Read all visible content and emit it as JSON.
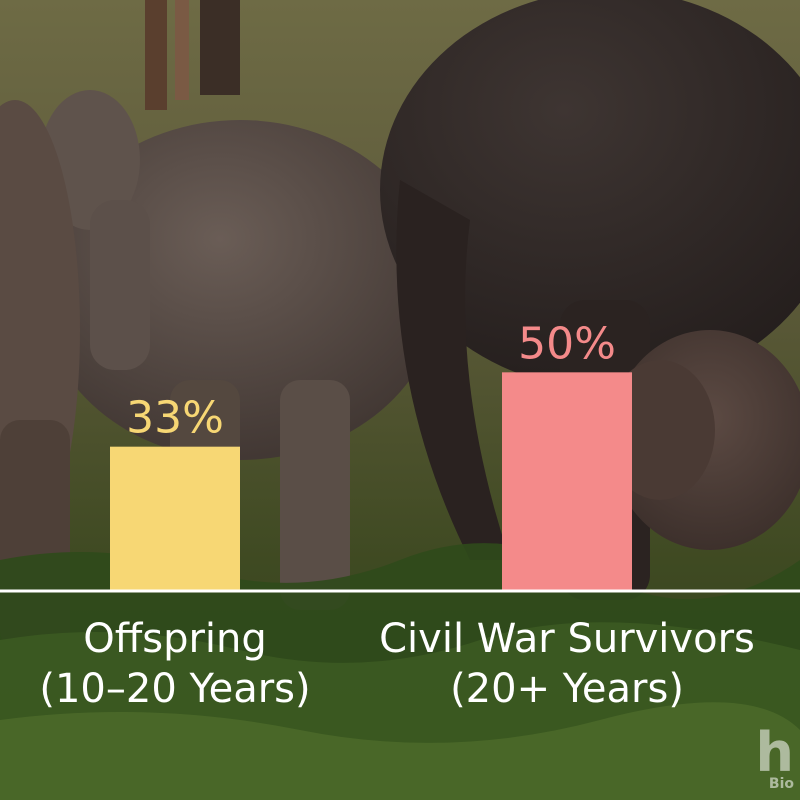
{
  "chart_data": {
    "type": "bar",
    "categories": [
      [
        "Offspring",
        "(10–20 Years)"
      ],
      [
        "Civil War Survivors",
        "(20+ Years)"
      ]
    ],
    "values": [
      33,
      50
    ],
    "value_labels": [
      "33%",
      "50%"
    ],
    "unit": "%",
    "ylim": [
      0,
      100
    ],
    "colors": [
      "#f7d774",
      "#f48a8a"
    ],
    "grid": false,
    "legend": "none"
  },
  "watermark": {
    "mark": "h",
    "text": "Bio"
  }
}
